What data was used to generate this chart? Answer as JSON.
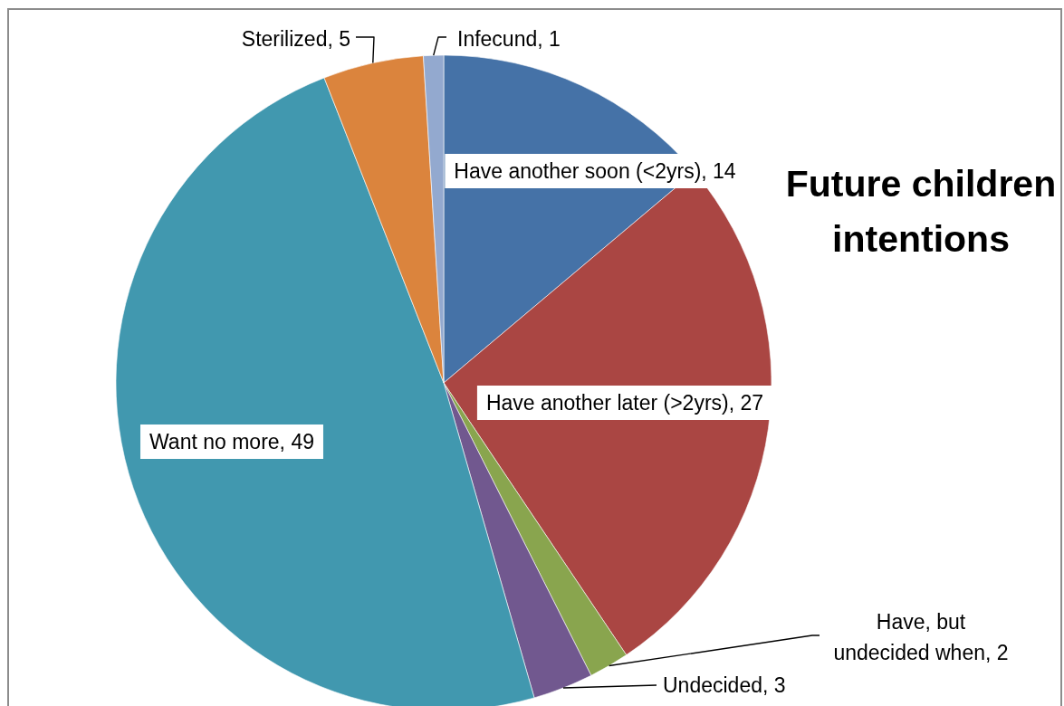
{
  "chart_data": {
    "type": "pie",
    "title": "Future children intentions",
    "categories": [
      "Have another soon (<2yrs)",
      "Have another later (>2yrs)",
      "Have, but undecided when",
      "Undecided",
      "Want no more",
      "Sterilized",
      "Infecund"
    ],
    "values": [
      14,
      27,
      2,
      3,
      49,
      5,
      1
    ],
    "value_labels": [
      ", 14",
      ", 27",
      ", 2",
      ", 3",
      ", 49",
      ", 5",
      ", 1"
    ],
    "colors": [
      "#4572a7",
      "#aa4643",
      "#89a54e",
      "#71588f",
      "#4198af",
      "#db843d",
      "#93a9cf"
    ]
  }
}
